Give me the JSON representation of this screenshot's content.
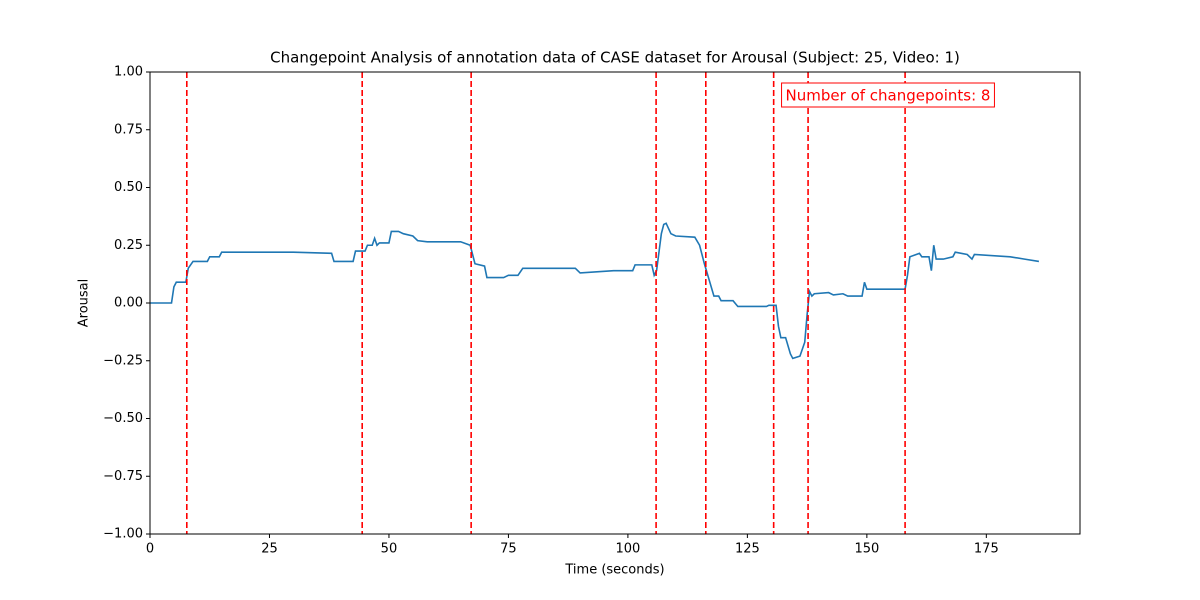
{
  "chart_data": {
    "type": "line",
    "title": "Changepoint Analysis of annotation data of CASE dataset for Arousal (Subject: 25, Video: 1)",
    "x_label": "Time (seconds)",
    "y_label": "Arousal",
    "x": [
      0,
      4.5,
      5,
      5.5,
      7.5,
      8,
      9,
      12,
      12.5,
      14.5,
      15,
      30,
      38,
      38.5,
      42.5,
      43,
      45,
      45.5,
      46.5,
      47,
      47.5,
      48,
      50,
      50.5,
      52,
      53,
      55,
      56,
      58,
      65,
      67,
      68,
      70,
      70.5,
      74,
      75,
      77,
      78,
      89,
      90,
      97,
      101,
      101.5,
      105,
      105.5,
      106,
      106.5,
      107,
      107.5,
      108,
      109,
      110,
      114,
      115,
      116,
      117,
      118,
      119,
      119.5,
      122,
      123,
      129,
      129.5,
      131,
      131.5,
      132,
      133,
      134,
      134.5,
      136,
      137,
      137.5,
      138,
      138.5,
      139,
      142,
      143,
      145,
      146,
      149,
      149.5,
      150,
      158,
      158.5,
      159,
      161,
      161.5,
      163,
      163.5,
      164,
      164.5,
      166,
      168,
      168.5,
      171,
      172,
      172.5,
      180,
      183,
      186
    ],
    "series": [
      {
        "color": "#1f77b4",
        "values": [
          0,
          0,
          0.07,
          0.09,
          0.09,
          0.15,
          0.18,
          0.18,
          0.2,
          0.2,
          0.22,
          0.22,
          0.215,
          0.18,
          0.18,
          0.225,
          0.225,
          0.25,
          0.25,
          0.28,
          0.25,
          0.26,
          0.26,
          0.31,
          0.31,
          0.3,
          0.29,
          0.27,
          0.265,
          0.265,
          0.25,
          0.17,
          0.16,
          0.11,
          0.11,
          0.12,
          0.12,
          0.15,
          0.15,
          0.13,
          0.14,
          0.14,
          0.165,
          0.165,
          0.12,
          0.14,
          0.22,
          0.3,
          0.34,
          0.345,
          0.3,
          0.29,
          0.285,
          0.25,
          0.17,
          0.1,
          0.03,
          0.03,
          0.01,
          0.01,
          -0.015,
          -0.015,
          -0.01,
          -0.01,
          -0.1,
          -0.15,
          -0.15,
          -0.22,
          -0.24,
          -0.23,
          -0.17,
          -0.05,
          0.05,
          0.03,
          0.04,
          0.045,
          0.035,
          0.04,
          0.03,
          0.03,
          0.09,
          0.06,
          0.06,
          0.12,
          0.2,
          0.215,
          0.2,
          0.2,
          0.14,
          0.25,
          0.19,
          0.19,
          0.2,
          0.22,
          0.21,
          0.19,
          0.21,
          0.2,
          0.19,
          0.18
        ]
      }
    ],
    "changepoints": [
      7.7,
      44.4,
      67.2,
      105.9,
      116.3,
      130.5,
      137.7,
      158.0
    ],
    "changepoint_color": "#ff0000",
    "annotation": "Number of changepoints: 8",
    "xlim": [
      0,
      194.6
    ],
    "xticks": [
      0,
      25,
      50,
      75,
      100,
      125,
      150,
      175
    ],
    "ylim": [
      -1,
      1
    ],
    "yticks": [
      {
        "value": -1,
        "label": "−1.00"
      },
      {
        "value": -0.75,
        "label": "−0.75"
      },
      {
        "value": -0.5,
        "label": "−0.50"
      },
      {
        "value": -0.25,
        "label": "−0.25"
      },
      {
        "value": 0,
        "label": "0.00"
      },
      {
        "value": 0.25,
        "label": "0.25"
      },
      {
        "value": 0.5,
        "label": "0.50"
      },
      {
        "value": 0.75,
        "label": "0.75"
      },
      {
        "value": 1,
        "label": "1.00"
      }
    ]
  }
}
